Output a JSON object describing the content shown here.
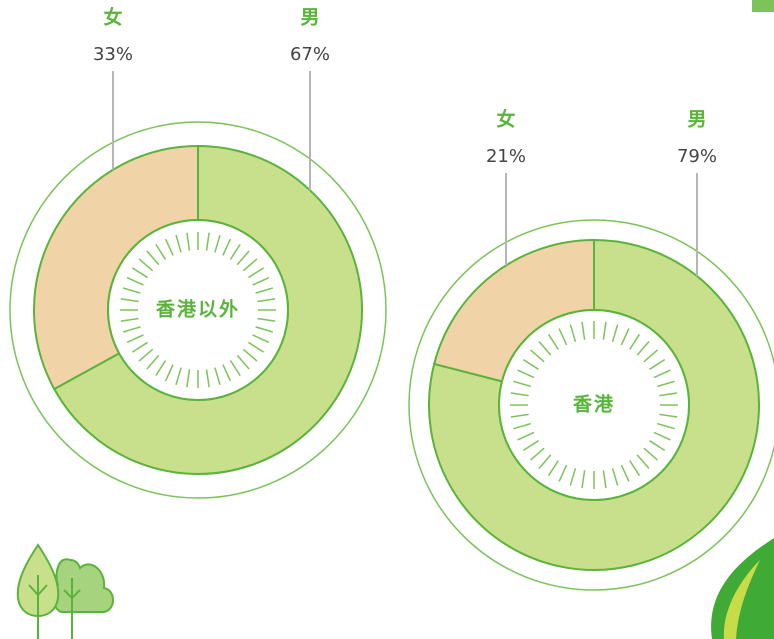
{
  "chart_data": [
    {
      "type": "pie",
      "title": "香港以外",
      "categories": [
        "女",
        "男"
      ],
      "values": [
        33,
        67
      ],
      "value_labels": [
        "33%",
        "67%"
      ],
      "colors": [
        "#f0d4a8",
        "#c8e08c"
      ]
    },
    {
      "type": "pie",
      "title": "香港",
      "categories": [
        "女",
        "男"
      ],
      "values": [
        21,
        79
      ],
      "value_labels": [
        "21%",
        "79%"
      ],
      "colors": [
        "#f0d4a8",
        "#c8e08c"
      ]
    }
  ]
}
